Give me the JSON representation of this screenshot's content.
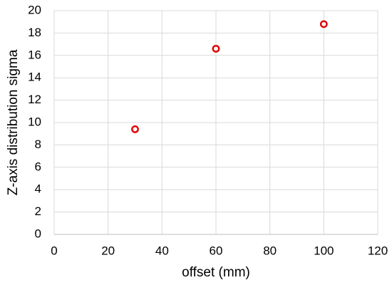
{
  "chart_data": {
    "type": "scatter",
    "x_label": "offset (mm)",
    "y_label": "Z-axis distribution sigma",
    "x": [
      30,
      60,
      100
    ],
    "values": [
      9.4,
      16.6,
      18.8
    ],
    "color": "#e00000",
    "xlim": [
      0,
      120
    ],
    "xticks": [
      0,
      20,
      40,
      60,
      80,
      100,
      120
    ],
    "ylim": [
      0,
      20
    ],
    "yticks": [
      0,
      2,
      4,
      6,
      8,
      10,
      12,
      14,
      16,
      18,
      20
    ],
    "grid": true
  }
}
